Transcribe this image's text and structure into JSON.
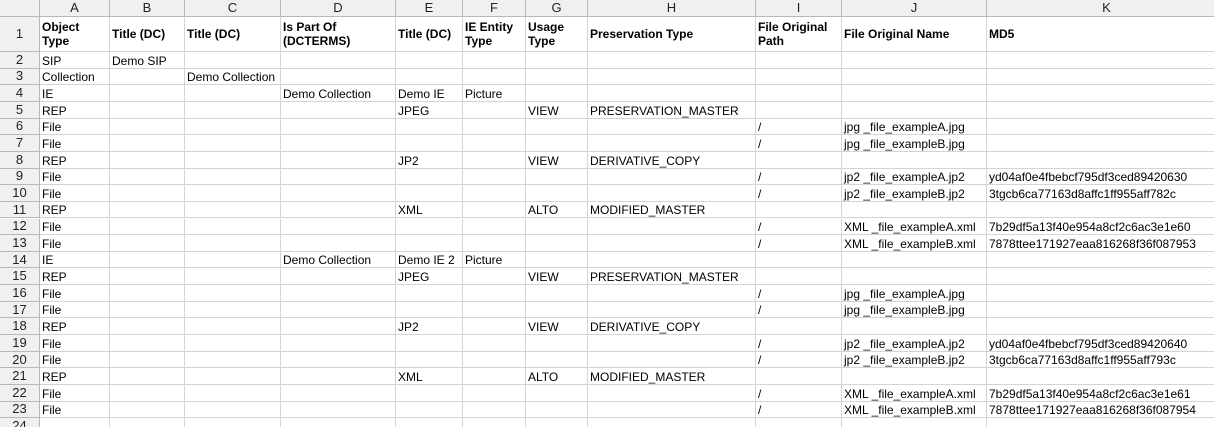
{
  "columns": [
    "A",
    "B",
    "C",
    "D",
    "E",
    "F",
    "G",
    "H",
    "I",
    "J",
    "K"
  ],
  "row_numbers": [
    1,
    2,
    3,
    4,
    5,
    6,
    7,
    8,
    9,
    10,
    11,
    12,
    13,
    14,
    15,
    16,
    17,
    18,
    19,
    20,
    21,
    22,
    23,
    24
  ],
  "rows": [
    {
      "A": "Object Type",
      "B": "Title (DC)",
      "C": "Title (DC)",
      "D": "Is Part Of (DCTERMS)",
      "E": "Title (DC)",
      "F": "IE Entity Type",
      "G": "Usage Type",
      "H": "Preservation Type",
      "I": "File Original Path",
      "J": "File Original Name",
      "K": "MD5"
    },
    {
      "A": "SIP",
      "B": "Demo SIP"
    },
    {
      "A": "Collection",
      "C": "Demo Collection"
    },
    {
      "A": "IE",
      "D": "Demo Collection",
      "E": "Demo IE",
      "F": "Picture"
    },
    {
      "A": "REP",
      "E": "JPEG",
      "G": "VIEW",
      "H": "PRESERVATION_MASTER"
    },
    {
      "A": "File",
      "I": "/",
      "J": "jpg _file_exampleA.jpg"
    },
    {
      "A": "File",
      "I": "/",
      "J": "jpg _file_exampleB.jpg"
    },
    {
      "A": "REP",
      "E": "JP2",
      "G": "VIEW",
      "H": "DERIVATIVE_COPY"
    },
    {
      "A": "File",
      "I": "/",
      "J": "jp2 _file_exampleA.jp2",
      "K": "yd04af0e4fbebcf795df3ced89420630"
    },
    {
      "A": "File",
      "I": "/",
      "J": "jp2 _file_exampleB.jp2",
      "K": "3tgcb6ca77163d8affc1ff955aff782c"
    },
    {
      "A": "REP",
      "E": "XML",
      "G": "ALTO",
      "H": "MODIFIED_MASTER"
    },
    {
      "A": "File",
      "I": "/",
      "J": "XML _file_exampleA.xml",
      "K": "7b29df5a13f40e954a8cf2c6ac3e1e60"
    },
    {
      "A": "File",
      "I": "/",
      "J": "XML _file_exampleB.xml",
      "K": "7878ttee171927eaa816268f36f087953"
    },
    {
      "A": "IE",
      "D": "Demo Collection",
      "E": "Demo IE 2",
      "F": "Picture"
    },
    {
      "A": "REP",
      "E": "JPEG",
      "G": "VIEW",
      "H": "PRESERVATION_MASTER"
    },
    {
      "A": "File",
      "I": "/",
      "J": "jpg _file_exampleA.jpg"
    },
    {
      "A": "File",
      "I": "/",
      "J": "jpg _file_exampleB.jpg"
    },
    {
      "A": "REP",
      "E": "JP2",
      "G": "VIEW",
      "H": "DERIVATIVE_COPY"
    },
    {
      "A": "File",
      "I": "/",
      "J": "jp2 _file_exampleA.jp2",
      "K": "yd04af0e4fbebcf795df3ced89420640"
    },
    {
      "A": "File",
      "I": "/",
      "J": "jp2 _file_exampleB.jp2",
      "K": "3tgcb6ca77163d8affc1ff955aff793c"
    },
    {
      "A": "REP",
      "E": "XML",
      "G": "ALTO",
      "H": "MODIFIED_MASTER"
    },
    {
      "A": "File",
      "I": "/",
      "J": "XML _file_exampleA.xml",
      "K": "7b29df5a13f40e954a8cf2c6ac3e1e61"
    },
    {
      "A": "File",
      "I": "/",
      "J": "XML _file_exampleB.xml",
      "K": "7878ttee171927eaa816268f36f087954"
    }
  ]
}
